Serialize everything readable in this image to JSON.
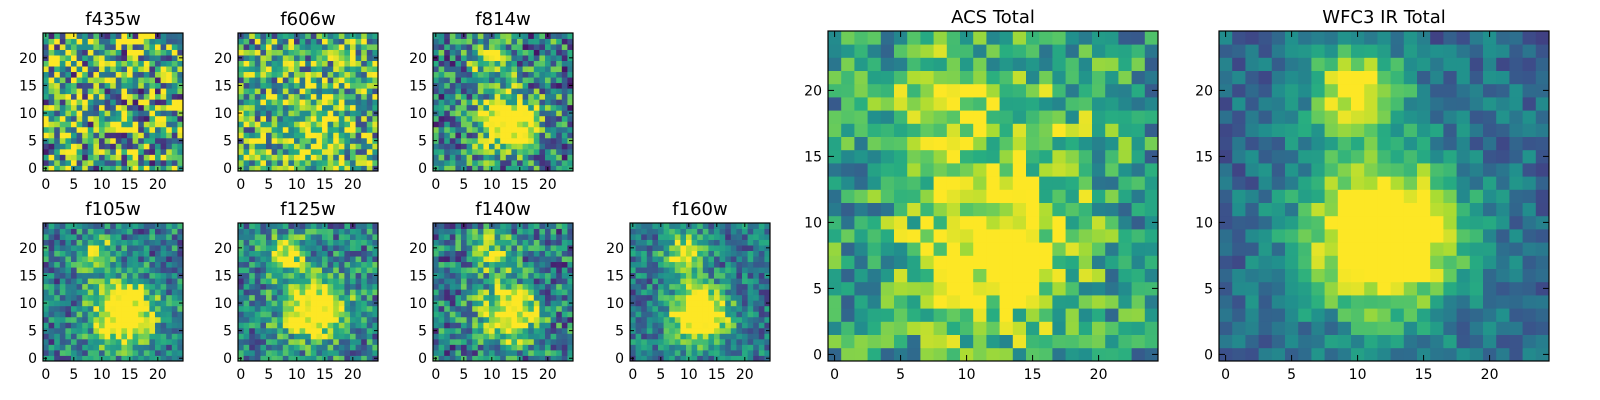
{
  "chart_data": [
    {
      "type": "heatmap",
      "title": "f435w",
      "xticks": [
        "0",
        "5",
        "10",
        "15",
        "20"
      ],
      "yticks": [
        "0",
        "5",
        "10",
        "15",
        "20"
      ],
      "xlim": [
        0,
        25
      ],
      "ylim": [
        0,
        25
      ],
      "grid": false,
      "colormap": "viridis"
    },
    {
      "type": "heatmap",
      "title": "f606w",
      "xticks": [
        "0",
        "5",
        "10",
        "15",
        "20"
      ],
      "yticks": [
        "0",
        "5",
        "10",
        "15",
        "20"
      ],
      "xlim": [
        0,
        25
      ],
      "ylim": [
        0,
        25
      ],
      "grid": false,
      "colormap": "viridis"
    },
    {
      "type": "heatmap",
      "title": "f814w",
      "xticks": [
        "0",
        "5",
        "10",
        "15",
        "20"
      ],
      "yticks": [
        "0",
        "5",
        "10",
        "15",
        "20"
      ],
      "xlim": [
        0,
        25
      ],
      "ylim": [
        0,
        25
      ],
      "grid": false,
      "colormap": "viridis"
    },
    {
      "type": "heatmap",
      "title": "f105w",
      "xticks": [
        "0",
        "5",
        "10",
        "15",
        "20"
      ],
      "yticks": [
        "0",
        "5",
        "10",
        "15",
        "20"
      ],
      "xlim": [
        0,
        25
      ],
      "ylim": [
        0,
        25
      ],
      "grid": false,
      "colormap": "viridis"
    },
    {
      "type": "heatmap",
      "title": "f125w",
      "xticks": [
        "0",
        "5",
        "10",
        "15",
        "20"
      ],
      "yticks": [
        "0",
        "5",
        "10",
        "15",
        "20"
      ],
      "xlim": [
        0,
        25
      ],
      "ylim": [
        0,
        25
      ],
      "grid": false,
      "colormap": "viridis"
    },
    {
      "type": "heatmap",
      "title": "f140w",
      "xticks": [
        "0",
        "5",
        "10",
        "15",
        "20"
      ],
      "yticks": [
        "0",
        "5",
        "10",
        "15",
        "20"
      ],
      "xlim": [
        0,
        25
      ],
      "ylim": [
        0,
        25
      ],
      "grid": false,
      "colormap": "viridis"
    },
    {
      "type": "heatmap",
      "title": "f160w",
      "xticks": [
        "0",
        "5",
        "10",
        "15",
        "20"
      ],
      "yticks": [
        "0",
        "5",
        "10",
        "15",
        "20"
      ],
      "xlim": [
        0,
        25
      ],
      "ylim": [
        0,
        25
      ],
      "grid": false,
      "colormap": "viridis"
    },
    {
      "type": "heatmap",
      "title": "ACS Total",
      "xticks": [
        "0",
        "5",
        "10",
        "15",
        "20"
      ],
      "yticks": [
        "0",
        "5",
        "10",
        "15",
        "20"
      ],
      "xlim": [
        0,
        25
      ],
      "ylim": [
        0,
        25
      ],
      "grid": false,
      "colormap": "viridis"
    },
    {
      "type": "heatmap",
      "title": "WFC3 IR Total",
      "xticks": [
        "0",
        "5",
        "10",
        "15",
        "20"
      ],
      "yticks": [
        "0",
        "5",
        "10",
        "15",
        "20"
      ],
      "xlim": [
        0,
        25
      ],
      "ylim": [
        0,
        25
      ],
      "grid": false,
      "colormap": "viridis"
    }
  ]
}
